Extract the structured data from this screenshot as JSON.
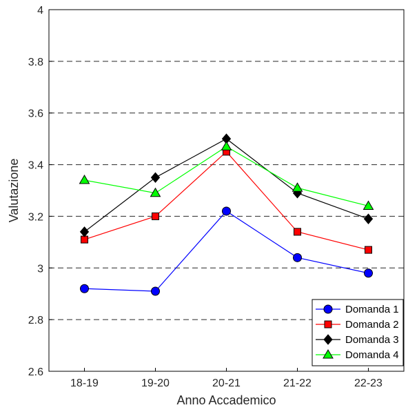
{
  "chart_data": {
    "type": "line",
    "title": "",
    "xlabel": "Anno Accademico",
    "ylabel": "Valutazione",
    "categories": [
      "18-19",
      "19-20",
      "20-21",
      "21-22",
      "22-23"
    ],
    "ylim": [
      2.6,
      4
    ],
    "yticks": [
      "2.6",
      "2.8",
      "3",
      "3.2",
      "3.4",
      "3.6",
      "3.8",
      "4"
    ],
    "grid": "horizontal-dashed",
    "legend_position": "bottom-right",
    "series": [
      {
        "name": "Domanda 1",
        "values": [
          2.92,
          2.91,
          3.22,
          3.04,
          2.98
        ],
        "color": "#0000ff",
        "marker": "circle"
      },
      {
        "name": "Domanda 2",
        "values": [
          3.11,
          3.2,
          3.45,
          3.14,
          3.07
        ],
        "color": "#ff0000",
        "marker": "square"
      },
      {
        "name": "Domanda 3",
        "values": [
          3.14,
          3.35,
          3.5,
          3.29,
          3.19
        ],
        "color": "#000000",
        "marker": "diamond"
      },
      {
        "name": "Domanda 4",
        "values": [
          3.34,
          3.29,
          3.47,
          3.31,
          3.24
        ],
        "color": "#00ff00",
        "marker": "triangle"
      }
    ]
  }
}
